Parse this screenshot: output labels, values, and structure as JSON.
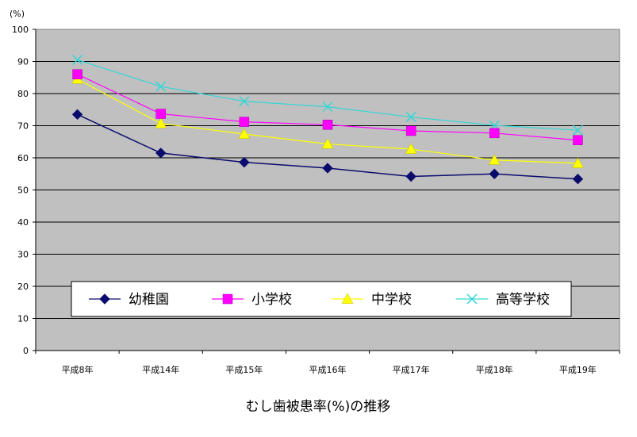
{
  "chart_data": {
    "type": "line",
    "title": "",
    "xlabel": "むし歯被患率(%)の推移",
    "ylabel": "",
    "y_unit": "(%)",
    "ylim": [
      0,
      100
    ],
    "yticks": [
      0,
      10,
      20,
      30,
      40,
      50,
      60,
      70,
      80,
      90,
      100
    ],
    "grid": true,
    "legend_placement": "lower-middle inside",
    "categories": [
      "平成8年",
      "平成14年",
      "平成15年",
      "平成16年",
      "平成17年",
      "平成18年",
      "平成19年"
    ],
    "series": [
      {
        "name": "幼稚園",
        "color": "#0b0b6e",
        "marker": "diamond",
        "values": [
          73.5,
          61.5,
          58.6,
          56.8,
          54.2,
          55.0,
          53.4
        ]
      },
      {
        "name": "小学校",
        "color": "#ff00ff",
        "marker": "square",
        "values": [
          86.0,
          73.7,
          71.2,
          70.3,
          68.4,
          67.7,
          65.5
        ]
      },
      {
        "name": "中学校",
        "color": "#ffff00",
        "marker": "triangle",
        "values": [
          84.5,
          70.7,
          67.4,
          64.3,
          62.7,
          59.3,
          58.3
        ]
      },
      {
        "name": "高等学校",
        "color": "#33d6d6",
        "marker": "x",
        "values": [
          90.5,
          82.2,
          77.6,
          75.9,
          72.7,
          70.1,
          68.6
        ]
      }
    ]
  }
}
